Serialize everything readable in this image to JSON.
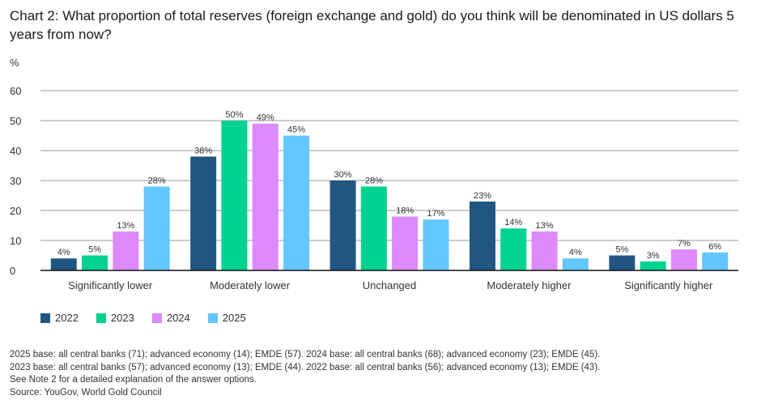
{
  "chart_data": {
    "type": "bar",
    "title": "Chart 2: What proportion of total reserves (foreign exchange and gold) do you think will be denominated in US dollars 5 years from now?",
    "ylabel": "%",
    "ylim": [
      0,
      60
    ],
    "yticks": [
      0,
      10,
      20,
      30,
      40,
      50,
      60
    ],
    "grid": true,
    "legend_position": "bottom-left",
    "categories": [
      "Significantly lower",
      "Moderately lower",
      "Unchanged",
      "Moderately higher",
      "Significantly higher"
    ],
    "series": [
      {
        "name": "2022",
        "color": "#215682",
        "values": [
          4,
          38,
          30,
          23,
          5
        ],
        "labels": [
          "4%",
          "38%",
          "30%",
          "23%",
          "5%"
        ]
      },
      {
        "name": "2023",
        "color": "#00d28f",
        "values": [
          5,
          50,
          28,
          14,
          3
        ],
        "labels": [
          "5%",
          "50%",
          "28%",
          "14%",
          "3%"
        ]
      },
      {
        "name": "2024",
        "color": "#dc8afc",
        "values": [
          13,
          49,
          18,
          13,
          7
        ],
        "labels": [
          "13%",
          "49%",
          "18%",
          "13%",
          "7%"
        ]
      },
      {
        "name": "2025",
        "color": "#64c6ff",
        "values": [
          28,
          45,
          17,
          4,
          6
        ],
        "labels": [
          "28%",
          "45%",
          "17%",
          "4%",
          "6%"
        ]
      }
    ]
  },
  "notes": [
    "2025 base: all central banks (71); advanced economy (14); EMDE (57). 2024 base: all central banks (68); advanced economy (23); EMDE (45).",
    "2023 base: all central banks (57); advanced economy (13); EMDE (44). 2022 base: all central banks (56); advanced economy (13); EMDE (43).",
    "See Note 2 for a detailed explanation of the answer options.",
    "Source: YouGov, World Gold Council"
  ]
}
